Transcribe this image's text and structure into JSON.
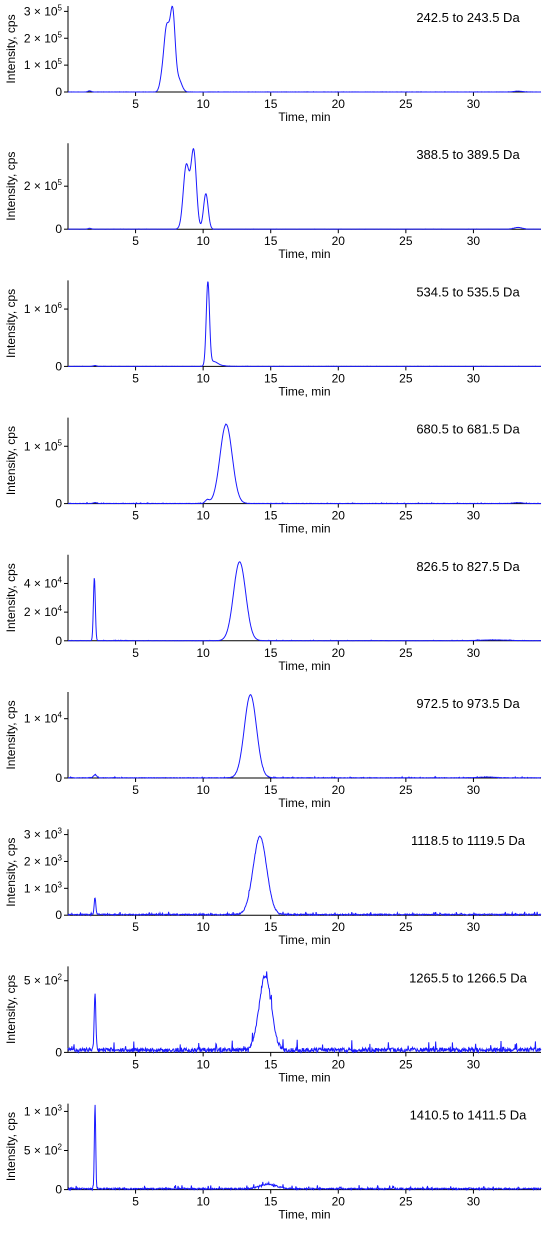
{
  "chart_data": [
    {
      "type": "line",
      "title": "242.5 to 243.5 Da",
      "xlabel": "Time, min",
      "ylabel": "Intensity, cps",
      "xlim": [
        0,
        35
      ],
      "xticks": [
        5,
        10,
        15,
        20,
        25,
        30
      ],
      "ylim": [
        0,
        320000
      ],
      "yticks": [
        {
          "v": 0,
          "m": "0",
          "e": ""
        },
        {
          "v": 100000,
          "m": "1 × 10",
          "e": "5"
        },
        {
          "v": 200000,
          "m": "2 × 10",
          "e": "5"
        },
        {
          "v": 300000,
          "m": "3 × 10",
          "e": "5"
        }
      ],
      "color": "#1a1aff",
      "noise": 300,
      "baseline_bumps": [
        [
          1.6,
          0.12,
          4000
        ],
        [
          33.3,
          0.3,
          3000
        ]
      ],
      "peaks": [
        [
          6.9,
          0.15,
          25000
        ],
        [
          7.3,
          0.22,
          240000
        ],
        [
          7.75,
          0.18,
          280000
        ],
        [
          8.2,
          0.22,
          45000
        ]
      ]
    },
    {
      "type": "line",
      "title": "388.5 to 389.5 Da",
      "xlabel": "Time, min",
      "ylabel": "Intensity, cps",
      "xlim": [
        0,
        35
      ],
      "xticks": [
        5,
        10,
        15,
        20,
        25,
        30
      ],
      "ylim": [
        0,
        400000
      ],
      "yticks": [
        {
          "v": 0,
          "m": "0",
          "e": ""
        },
        {
          "v": 200000,
          "m": "2 × 10",
          "e": "5"
        }
      ],
      "color": "#1a1aff",
      "noise": 400,
      "baseline_bumps": [
        [
          1.6,
          0.12,
          4000
        ],
        [
          33.3,
          0.3,
          8000
        ]
      ],
      "peaks": [
        [
          8.75,
          0.22,
          295000
        ],
        [
          9.3,
          0.2,
          360000
        ],
        [
          10.2,
          0.17,
          165000
        ]
      ]
    },
    {
      "type": "line",
      "title": "534.5 to 535.5 Da",
      "xlabel": "Time, min",
      "ylabel": "Intensity, cps",
      "xlim": [
        0,
        35
      ],
      "xticks": [
        5,
        10,
        15,
        20,
        25,
        30
      ],
      "ylim": [
        0,
        1500000
      ],
      "yticks": [
        {
          "v": 0,
          "m": "0",
          "e": ""
        },
        {
          "v": 1000000,
          "m": "1 × 10",
          "e": "6"
        }
      ],
      "color": "#1a1aff",
      "noise": 1500,
      "baseline_bumps": [
        [
          2.0,
          0.12,
          15000
        ],
        [
          11.3,
          0.4,
          12000
        ]
      ],
      "peaks": [
        [
          10.35,
          0.12,
          1450000
        ],
        [
          10.75,
          0.3,
          80000
        ]
      ]
    },
    {
      "type": "line",
      "title": "680.5 to 681.5 Da",
      "xlabel": "Time, min",
      "ylabel": "Intensity, cps",
      "xlim": [
        0,
        35
      ],
      "xticks": [
        5,
        10,
        15,
        20,
        25,
        30
      ],
      "ylim": [
        0,
        150000
      ],
      "yticks": [
        {
          "v": 0,
          "m": "0",
          "e": ""
        },
        {
          "v": 100000,
          "m": "1 × 10",
          "e": "5"
        }
      ],
      "color": "#1a1aff",
      "noise": 400,
      "baseline_bumps": [
        [
          2.0,
          0.12,
          1500
        ],
        [
          33.3,
          0.3,
          1500
        ]
      ],
      "peaks": [
        [
          10.3,
          0.15,
          6000
        ],
        [
          11.7,
          0.45,
          138000
        ]
      ]
    },
    {
      "type": "line",
      "title": "826.5 to 827.5 Da",
      "xlabel": "Time, min",
      "ylabel": "Intensity, cps",
      "xlim": [
        0,
        35
      ],
      "xticks": [
        5,
        10,
        15,
        20,
        25,
        30
      ],
      "ylim": [
        0,
        60000
      ],
      "yticks": [
        {
          "v": 0,
          "m": "0",
          "e": ""
        },
        {
          "v": 20000,
          "m": "2 × 10",
          "e": "4"
        },
        {
          "v": 40000,
          "m": "4 × 10",
          "e": "4"
        }
      ],
      "color": "#1a1aff",
      "noise": 150,
      "baseline_bumps": [
        [
          31.5,
          1.0,
          500
        ]
      ],
      "peaks": [
        [
          1.95,
          0.07,
          44000
        ],
        [
          12.7,
          0.45,
          55000
        ]
      ]
    },
    {
      "type": "line",
      "title": "972.5 to 973.5 Da",
      "xlabel": "Time, min",
      "ylabel": "Intensity, cps",
      "xlim": [
        0,
        35
      ],
      "xticks": [
        5,
        10,
        15,
        20,
        25,
        30
      ],
      "ylim": [
        0,
        14500
      ],
      "yticks": [
        {
          "v": 0,
          "m": "0",
          "e": ""
        },
        {
          "v": 10000,
          "m": "1 × 10",
          "e": "4"
        }
      ],
      "color": "#1a1aff",
      "noise": 60,
      "baseline_bumps": [
        [
          2.0,
          0.12,
          500
        ],
        [
          31.0,
          0.6,
          120
        ]
      ],
      "peaks": [
        [
          13.5,
          0.45,
          14000
        ]
      ]
    },
    {
      "type": "line",
      "title": "1118.5 to 1119.5 Da",
      "xlabel": "Time, min",
      "ylabel": "Intensity, cps",
      "xlim": [
        0,
        35
      ],
      "xticks": [
        5,
        10,
        15,
        20,
        25,
        30
      ],
      "ylim": [
        0,
        3200
      ],
      "yticks": [
        {
          "v": 0,
          "m": "0",
          "e": ""
        },
        {
          "v": 1000,
          "m": "1 × 10",
          "e": "3"
        },
        {
          "v": 2000,
          "m": "2 × 10",
          "e": "3"
        },
        {
          "v": 3000,
          "m": "3 × 10",
          "e": "3"
        }
      ],
      "color": "#1a1aff",
      "noise": 40,
      "baseline_bumps": [],
      "peaks": [
        [
          2.0,
          0.06,
          620
        ],
        [
          14.2,
          0.5,
          2900
        ]
      ]
    },
    {
      "type": "line",
      "title": "1265.5 to 1266.5 Da",
      "xlabel": "Time, min",
      "ylabel": "Intensity, cps",
      "xlim": [
        0,
        35
      ],
      "xticks": [
        5,
        10,
        15,
        20,
        25,
        30
      ],
      "ylim": [
        0,
        600
      ],
      "yticks": [
        {
          "v": 0,
          "m": "0",
          "e": ""
        },
        {
          "v": 500,
          "m": "5 × 10",
          "e": "2"
        }
      ],
      "color": "#1a1aff",
      "noise": 28,
      "baseline_bumps": [],
      "peaks": [
        [
          2.0,
          0.06,
          400
        ],
        [
          14.6,
          0.45,
          520
        ]
      ]
    },
    {
      "type": "line",
      "title": "1410.5 to 1411.5 Da",
      "xlabel": "Time, min",
      "ylabel": "Intensity, cps",
      "xlim": [
        0,
        35
      ],
      "xticks": [
        5,
        10,
        15,
        20,
        25,
        30
      ],
      "ylim": [
        0,
        1100
      ],
      "yticks": [
        {
          "v": 0,
          "m": "0",
          "e": ""
        },
        {
          "v": 500,
          "m": "5 × 10",
          "e": "2"
        },
        {
          "v": 1000,
          "m": "1 × 10",
          "e": "3"
        }
      ],
      "color": "#1a1aff",
      "noise": 18,
      "baseline_bumps": [
        [
          14.8,
          0.6,
          60
        ]
      ],
      "peaks": [
        [
          2.0,
          0.05,
          1080
        ]
      ]
    }
  ]
}
